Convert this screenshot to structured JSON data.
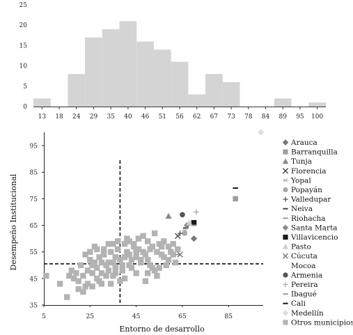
{
  "chart_data": [
    {
      "type": "bar",
      "categories": [
        "13",
        "18",
        "24",
        "29",
        "35",
        "40",
        "46",
        "51",
        "56",
        "62",
        "67",
        "73",
        "78",
        "84",
        "89",
        "95",
        "100"
      ],
      "values": [
        2,
        0,
        8,
        17,
        19,
        21,
        16,
        14,
        11,
        3,
        8,
        6,
        0,
        0,
        2,
        0,
        1
      ],
      "ylim": [
        0,
        25
      ],
      "yticks": [
        0,
        5,
        10,
        15,
        20,
        25
      ],
      "bar_color": "#d4d4d4"
    },
    {
      "type": "scatter",
      "xlabel": "Entorno de desarrollo",
      "ylabel": "Desempeño Institucional",
      "xlim": [
        5,
        100
      ],
      "ylim": [
        35,
        100
      ],
      "xticks": [
        5,
        25,
        45,
        65,
        85
      ],
      "yticks": [
        35,
        45,
        55,
        65,
        75,
        85,
        95
      ],
      "reference_lines": {
        "x": 38,
        "y": 50.5
      },
      "legend_position": "right",
      "series": [
        {
          "name": "Arauca",
          "marker": "diamond",
          "color": "#777777",
          "points": [
            [
              70,
              60
            ]
          ]
        },
        {
          "name": "Barranquilla",
          "marker": "square",
          "color": "#9e9e9e",
          "points": [
            [
              88,
              75
            ]
          ]
        },
        {
          "name": "Tunja",
          "marker": "triangle",
          "color": "#8a8a8a",
          "points": [
            [
              59,
              68.5
            ]
          ]
        },
        {
          "name": "Florencia",
          "marker": "x",
          "color": "#333333",
          "points": [
            [
              63,
              61
            ]
          ]
        },
        {
          "name": "Yopal",
          "marker": "asterisk",
          "color": "#b5b5b5",
          "points": [
            [
              66,
              63
            ]
          ]
        },
        {
          "name": "Popayán",
          "marker": "circle",
          "color": "#a8a8a8",
          "points": [
            [
              66,
              62
            ]
          ]
        },
        {
          "name": "Valledupar",
          "marker": "plus",
          "color": "#555555",
          "points": [
            [
              64,
              62
            ]
          ]
        },
        {
          "name": "Neiva",
          "marker": "dash",
          "color": "#444444",
          "points": [
            [
              66.5,
              64
            ]
          ]
        },
        {
          "name": "Riohacha",
          "marker": "dash",
          "color": "#9a9a9a",
          "points": [
            [
              63,
              54
            ]
          ]
        },
        {
          "name": "Santa Marta",
          "marker": "diamond",
          "color": "#8a8a8a",
          "points": [
            [
              67,
              65
            ]
          ]
        },
        {
          "name": "Villavicencio",
          "marker": "square",
          "color": "#1a1a1a",
          "points": [
            [
              70,
              66
            ]
          ]
        },
        {
          "name": "Pasto",
          "marker": "triangle",
          "color": "#cfcfcf",
          "points": [
            [
              68,
              66
            ]
          ]
        },
        {
          "name": "Cúcuta",
          "marker": "x",
          "color": "#666666",
          "points": [
            [
              64,
              54
            ]
          ]
        },
        {
          "name": "Mocoa",
          "marker": "none",
          "color": "#999999",
          "points": []
        },
        {
          "name": "Armenia",
          "marker": "circle",
          "color": "#555555",
          "points": [
            [
              65,
              69
            ]
          ]
        },
        {
          "name": "Pereira",
          "marker": "plus",
          "color": "#aaaaaa",
          "points": [
            [
              71,
              70
            ]
          ]
        },
        {
          "name": "Ibagué",
          "marker": "dash",
          "color": "#999999",
          "points": [
            [
              70,
              65
            ]
          ]
        },
        {
          "name": "Cali",
          "marker": "dash",
          "color": "#111111",
          "points": [
            [
              88,
              79
            ]
          ]
        },
        {
          "name": "Medellín",
          "marker": "diamond",
          "color": "#dddddd",
          "points": [
            [
              99,
              100
            ]
          ]
        },
        {
          "name": "Otros municipios",
          "marker": "square",
          "color": "#b3b3b3",
          "points": [
            [
              6,
              46
            ],
            [
              12,
              43
            ],
            [
              15,
              38
            ],
            [
              18,
              45
            ],
            [
              20,
              44
            ],
            [
              17,
              48
            ],
            [
              19,
              47
            ],
            [
              21,
              50
            ],
            [
              22,
              40
            ],
            [
              23,
              42
            ],
            [
              24,
              48
            ],
            [
              25,
              52
            ],
            [
              26,
              50
            ],
            [
              27,
              51
            ],
            [
              28,
              49
            ],
            [
              29,
              53
            ],
            [
              30,
              47
            ],
            [
              31,
              54
            ],
            [
              32,
              50
            ],
            [
              33,
              48
            ],
            [
              34,
              55
            ],
            [
              35,
              51
            ],
            [
              36,
              49
            ],
            [
              37,
              56
            ],
            [
              38,
              52
            ],
            [
              39,
              50
            ],
            [
              40,
              58
            ],
            [
              41,
              55
            ],
            [
              42,
              54
            ],
            [
              43,
              52
            ],
            [
              44,
              57
            ],
            [
              45,
              53
            ],
            [
              46,
              56
            ],
            [
              47,
              51
            ],
            [
              48,
              55
            ],
            [
              49,
              54
            ],
            [
              50,
              52
            ],
            [
              51,
              50
            ],
            [
              52,
              49
            ],
            [
              53,
              48
            ],
            [
              54,
              46
            ],
            [
              55,
              58
            ],
            [
              56,
              57
            ],
            [
              57,
              53
            ],
            [
              58,
              50
            ],
            [
              59,
              52
            ],
            [
              60,
              55
            ],
            [
              61,
              58
            ],
            [
              62,
              51
            ],
            [
              63,
              56
            ],
            [
              24,
              43
            ],
            [
              26,
              47
            ],
            [
              28,
              45
            ],
            [
              30,
              51
            ],
            [
              32,
              46
            ],
            [
              34,
              43
            ],
            [
              36,
              47
            ],
            [
              38,
              44
            ],
            [
              40,
              53
            ],
            [
              42,
              59
            ],
            [
              44,
              58
            ],
            [
              46,
              60
            ],
            [
              48,
              61
            ],
            [
              50,
              59
            ],
            [
              52,
              57
            ],
            [
              54,
              55
            ],
            [
              56,
              54
            ],
            [
              22,
              46
            ],
            [
              25,
              55
            ],
            [
              27,
              57
            ],
            [
              29,
              44
            ],
            [
              31,
              56
            ],
            [
              33,
              58
            ],
            [
              35,
              46
            ],
            [
              37,
              59
            ],
            [
              39,
              48
            ],
            [
              41,
              60
            ],
            [
              43,
              49
            ],
            [
              45,
              47
            ],
            [
              47,
              52
            ],
            [
              49,
              44
            ],
            [
              51,
              56
            ],
            [
              53,
              62
            ],
            [
              55,
              49
            ],
            [
              57,
              59
            ],
            [
              59,
              57
            ],
            [
              61,
              54
            ],
            [
              20,
              41
            ],
            [
              16,
              46
            ],
            [
              23,
              54
            ],
            [
              26,
              42
            ],
            [
              28,
              56
            ],
            [
              30,
              43
            ],
            [
              35,
              58
            ],
            [
              40,
              45
            ],
            [
              45,
              55
            ],
            [
              50,
              47
            ],
            [
              33,
              51
            ],
            [
              36,
              53
            ],
            [
              42,
              50
            ]
          ]
        }
      ]
    }
  ]
}
